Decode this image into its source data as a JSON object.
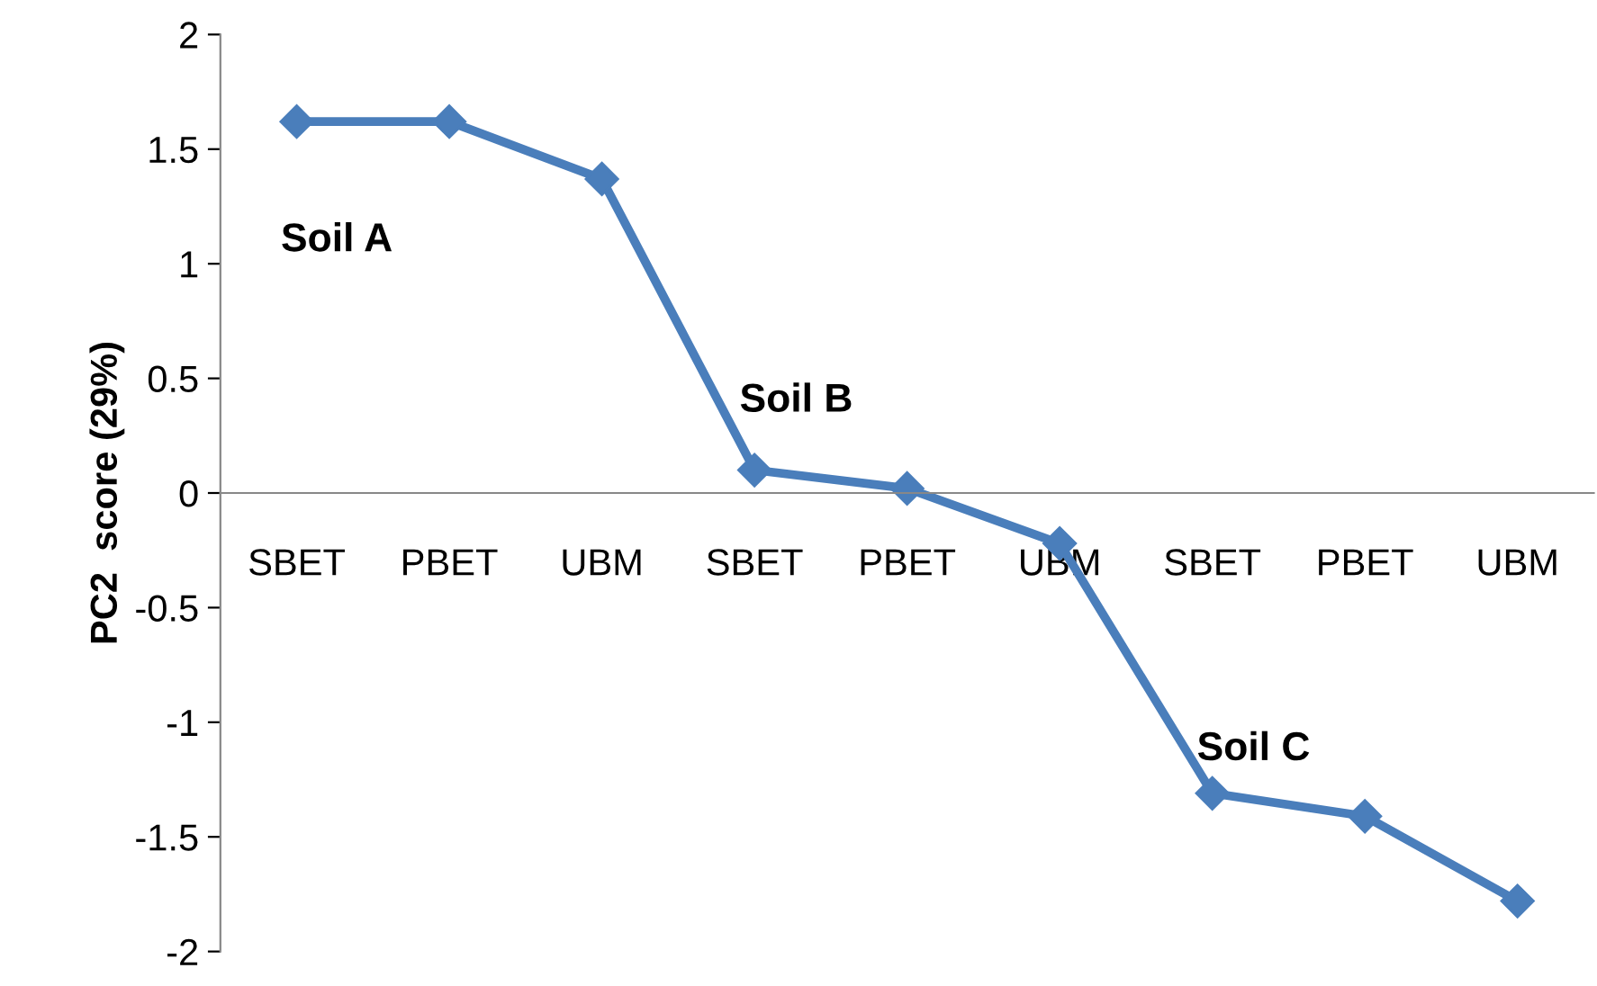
{
  "chart_data": {
    "type": "line",
    "ylabel": "PC2  score (29%)",
    "categories": [
      "SBET",
      "PBET",
      "UBM",
      "SBET",
      "PBET",
      "UBM",
      "SBET",
      "PBET",
      "UBM"
    ],
    "series": [
      {
        "color": "#4a7ebb",
        "values": [
          1.62,
          1.62,
          1.37,
          0.1,
          0.02,
          -0.22,
          -1.31,
          -1.41,
          -1.78
        ]
      }
    ],
    "ylim": [
      -2,
      2
    ],
    "yticks": [
      -2,
      -1.5,
      -1,
      -0.5,
      0,
      0.5,
      1,
      1.5,
      2
    ],
    "annotations": [
      "Soil A",
      "Soil B",
      "Soil C"
    ],
    "marker": "diamond",
    "line_style": "solid",
    "grid": false
  }
}
